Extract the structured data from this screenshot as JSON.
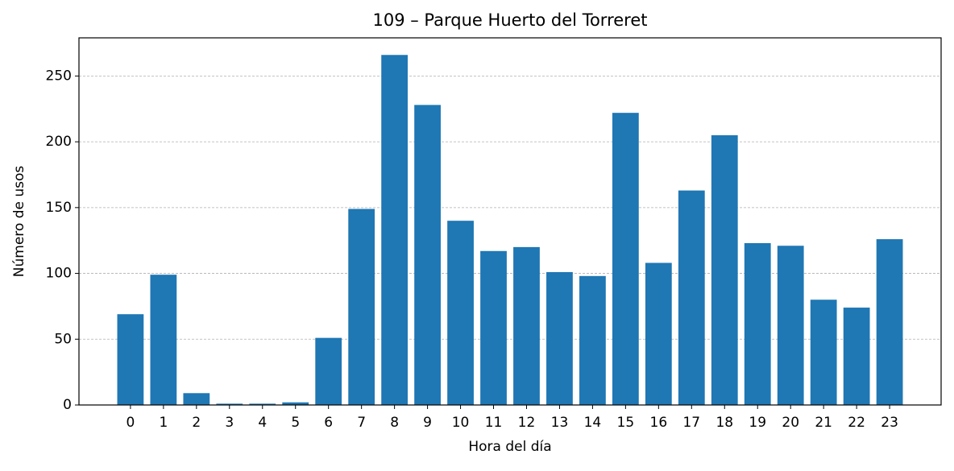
{
  "chart_data": {
    "type": "bar",
    "title": "109 – Parque Huerto del Torreret",
    "x_label": "Hora del día",
    "y_label": "Número de usos",
    "categories": [
      "0",
      "1",
      "2",
      "3",
      "4",
      "5",
      "6",
      "7",
      "8",
      "9",
      "10",
      "11",
      "12",
      "13",
      "14",
      "15",
      "16",
      "17",
      "18",
      "19",
      "20",
      "21",
      "22",
      "23"
    ],
    "values": [
      69,
      99,
      9,
      1,
      1,
      2,
      51,
      149,
      266,
      228,
      140,
      117,
      120,
      101,
      98,
      222,
      108,
      163,
      205,
      123,
      121,
      80,
      74,
      126
    ],
    "color": "#1f77b4",
    "ylim": [
      0,
      279
    ],
    "yticks": [
      0,
      50,
      100,
      150,
      200,
      250
    ],
    "grid": true
  }
}
